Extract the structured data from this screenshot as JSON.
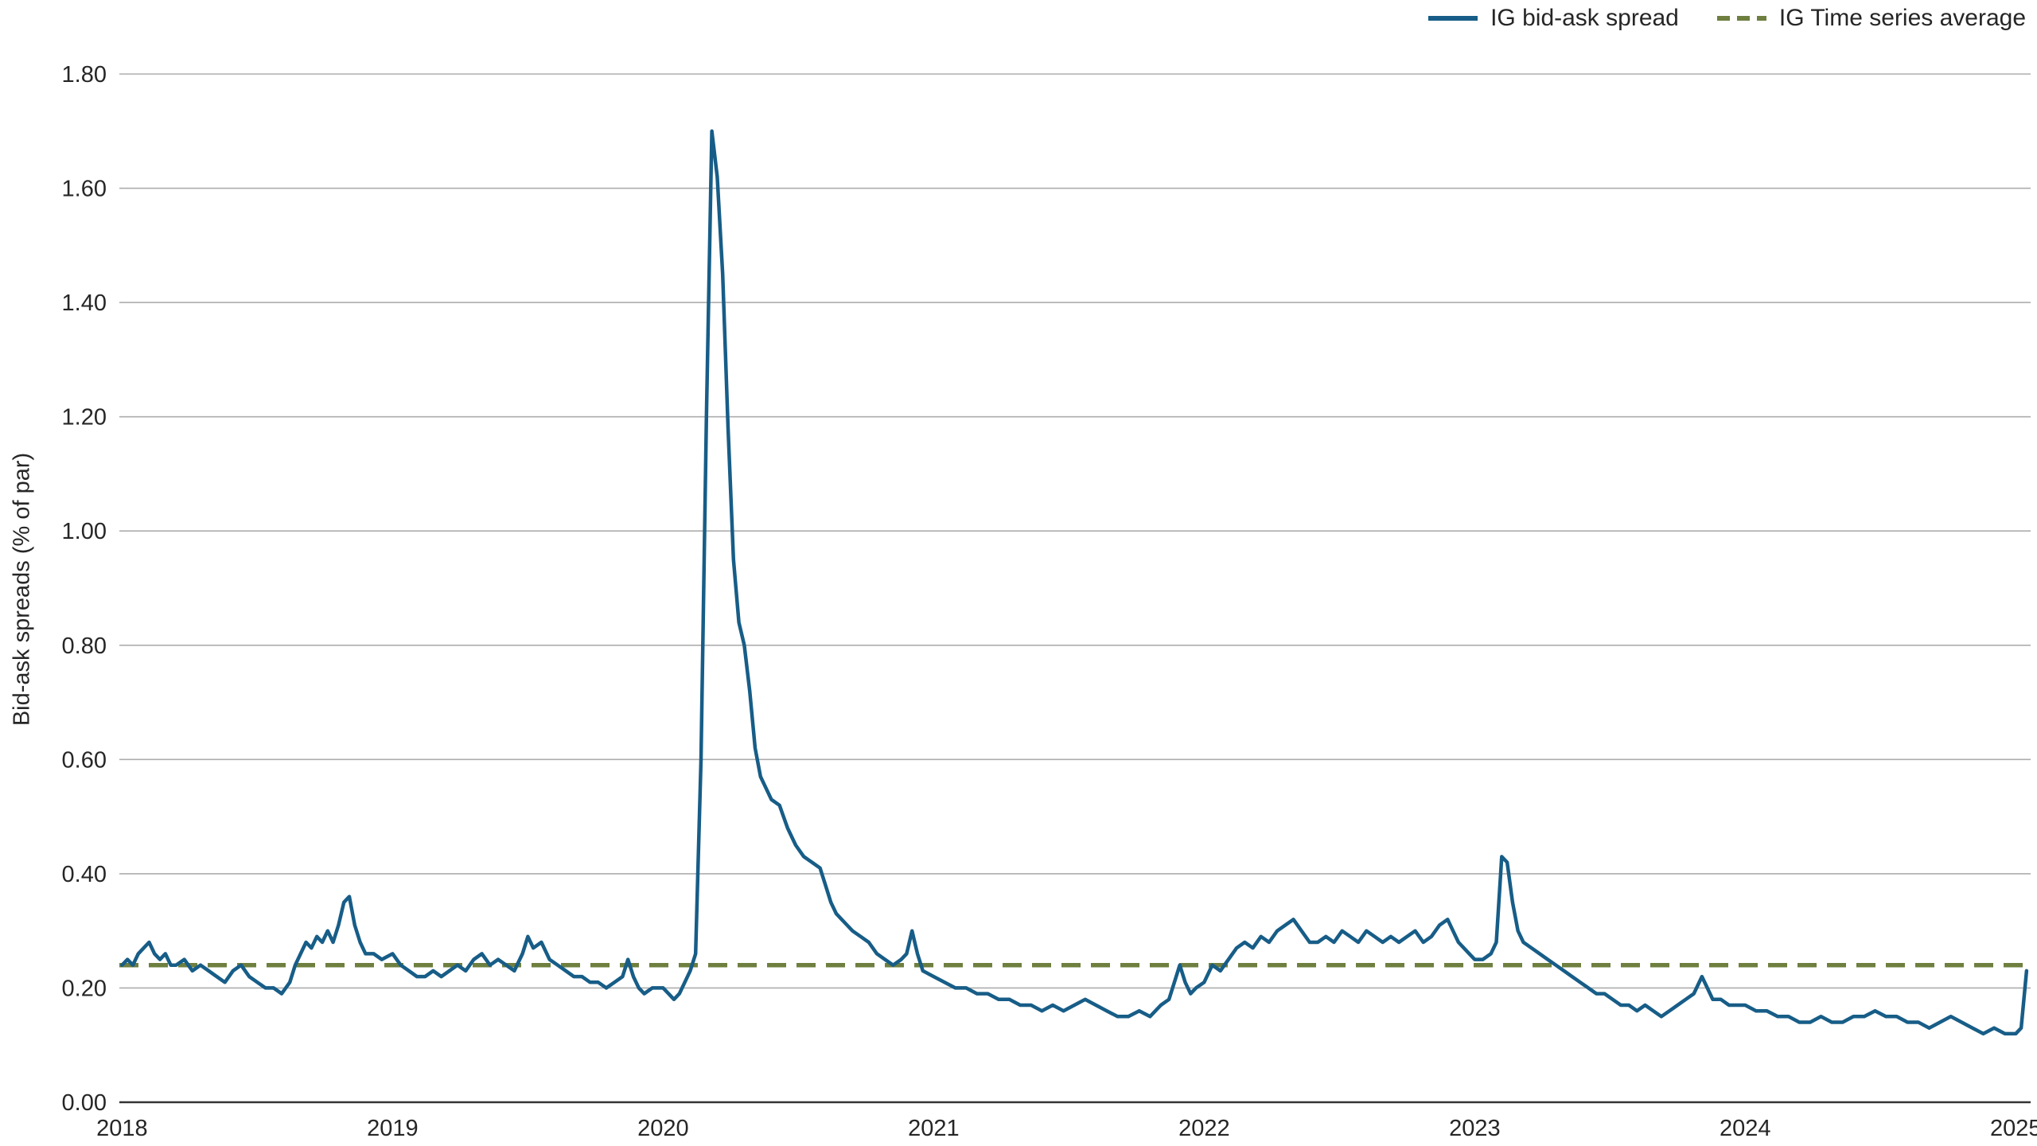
{
  "chart_data": {
    "type": "line",
    "title": "",
    "xlabel": "",
    "ylabel": "Bid-ask spreads (% of par)",
    "xlim": [
      2017.99,
      2025.055
    ],
    "ylim": [
      0.0,
      1.8
    ],
    "yticks": [
      0.0,
      0.2,
      0.4,
      0.6,
      0.8,
      1.0,
      1.2,
      1.4,
      1.6,
      1.8
    ],
    "ytick_format_decimals": 2,
    "xticks": [
      2018,
      2019,
      2020,
      2021,
      2022,
      2023,
      2024,
      2025
    ],
    "grid": "horizontal",
    "legend_position": "top-right",
    "colors": {
      "line": "#175D87",
      "average": "#6E7F3F",
      "gridline": "#ADADAD",
      "axis": "#333333",
      "text": "#262626"
    },
    "series": [
      {
        "name": "IG bid-ask spread",
        "color": "#175D87",
        "style": "solid",
        "points": [
          [
            2018.0,
            0.24
          ],
          [
            2018.02,
            0.25
          ],
          [
            2018.04,
            0.24
          ],
          [
            2018.06,
            0.26
          ],
          [
            2018.08,
            0.27
          ],
          [
            2018.1,
            0.28
          ],
          [
            2018.12,
            0.26
          ],
          [
            2018.14,
            0.25
          ],
          [
            2018.16,
            0.26
          ],
          [
            2018.18,
            0.24
          ],
          [
            2018.2,
            0.24
          ],
          [
            2018.23,
            0.25
          ],
          [
            2018.26,
            0.23
          ],
          [
            2018.29,
            0.24
          ],
          [
            2018.32,
            0.23
          ],
          [
            2018.35,
            0.22
          ],
          [
            2018.38,
            0.21
          ],
          [
            2018.41,
            0.23
          ],
          [
            2018.44,
            0.24
          ],
          [
            2018.47,
            0.22
          ],
          [
            2018.5,
            0.21
          ],
          [
            2018.53,
            0.2
          ],
          [
            2018.56,
            0.2
          ],
          [
            2018.59,
            0.19
          ],
          [
            2018.62,
            0.21
          ],
          [
            2018.64,
            0.24
          ],
          [
            2018.66,
            0.26
          ],
          [
            2018.68,
            0.28
          ],
          [
            2018.7,
            0.27
          ],
          [
            2018.72,
            0.29
          ],
          [
            2018.74,
            0.28
          ],
          [
            2018.76,
            0.3
          ],
          [
            2018.78,
            0.28
          ],
          [
            2018.8,
            0.31
          ],
          [
            2018.82,
            0.35
          ],
          [
            2018.84,
            0.36
          ],
          [
            2018.86,
            0.31
          ],
          [
            2018.88,
            0.28
          ],
          [
            2018.9,
            0.26
          ],
          [
            2018.93,
            0.26
          ],
          [
            2018.96,
            0.25
          ],
          [
            2019.0,
            0.26
          ],
          [
            2019.03,
            0.24
          ],
          [
            2019.06,
            0.23
          ],
          [
            2019.09,
            0.22
          ],
          [
            2019.12,
            0.22
          ],
          [
            2019.15,
            0.23
          ],
          [
            2019.18,
            0.22
          ],
          [
            2019.21,
            0.23
          ],
          [
            2019.24,
            0.24
          ],
          [
            2019.27,
            0.23
          ],
          [
            2019.3,
            0.25
          ],
          [
            2019.33,
            0.26
          ],
          [
            2019.36,
            0.24
          ],
          [
            2019.39,
            0.25
          ],
          [
            2019.42,
            0.24
          ],
          [
            2019.45,
            0.23
          ],
          [
            2019.48,
            0.26
          ],
          [
            2019.5,
            0.29
          ],
          [
            2019.52,
            0.27
          ],
          [
            2019.55,
            0.28
          ],
          [
            2019.58,
            0.25
          ],
          [
            2019.61,
            0.24
          ],
          [
            2019.64,
            0.23
          ],
          [
            2019.67,
            0.22
          ],
          [
            2019.7,
            0.22
          ],
          [
            2019.73,
            0.21
          ],
          [
            2019.76,
            0.21
          ],
          [
            2019.79,
            0.2
          ],
          [
            2019.82,
            0.21
          ],
          [
            2019.85,
            0.22
          ],
          [
            2019.87,
            0.25
          ],
          [
            2019.89,
            0.22
          ],
          [
            2019.91,
            0.2
          ],
          [
            2019.93,
            0.19
          ],
          [
            2019.96,
            0.2
          ],
          [
            2020.0,
            0.2
          ],
          [
            2020.02,
            0.19
          ],
          [
            2020.04,
            0.18
          ],
          [
            2020.06,
            0.19
          ],
          [
            2020.08,
            0.21
          ],
          [
            2020.1,
            0.23
          ],
          [
            2020.12,
            0.26
          ],
          [
            2020.14,
            0.6
          ],
          [
            2020.16,
            1.2
          ],
          [
            2020.18,
            1.7
          ],
          [
            2020.2,
            1.62
          ],
          [
            2020.22,
            1.45
          ],
          [
            2020.24,
            1.18
          ],
          [
            2020.26,
            0.95
          ],
          [
            2020.28,
            0.84
          ],
          [
            2020.3,
            0.8
          ],
          [
            2020.32,
            0.72
          ],
          [
            2020.34,
            0.62
          ],
          [
            2020.36,
            0.57
          ],
          [
            2020.38,
            0.55
          ],
          [
            2020.4,
            0.53
          ],
          [
            2020.43,
            0.52
          ],
          [
            2020.46,
            0.48
          ],
          [
            2020.49,
            0.45
          ],
          [
            2020.52,
            0.43
          ],
          [
            2020.55,
            0.42
          ],
          [
            2020.58,
            0.41
          ],
          [
            2020.6,
            0.38
          ],
          [
            2020.62,
            0.35
          ],
          [
            2020.64,
            0.33
          ],
          [
            2020.66,
            0.32
          ],
          [
            2020.68,
            0.31
          ],
          [
            2020.7,
            0.3
          ],
          [
            2020.73,
            0.29
          ],
          [
            2020.76,
            0.28
          ],
          [
            2020.79,
            0.26
          ],
          [
            2020.82,
            0.25
          ],
          [
            2020.85,
            0.24
          ],
          [
            2020.88,
            0.25
          ],
          [
            2020.9,
            0.26
          ],
          [
            2020.92,
            0.3
          ],
          [
            2020.94,
            0.26
          ],
          [
            2020.96,
            0.23
          ],
          [
            2021.0,
            0.22
          ],
          [
            2021.04,
            0.21
          ],
          [
            2021.08,
            0.2
          ],
          [
            2021.12,
            0.2
          ],
          [
            2021.16,
            0.19
          ],
          [
            2021.2,
            0.19
          ],
          [
            2021.24,
            0.18
          ],
          [
            2021.28,
            0.18
          ],
          [
            2021.32,
            0.17
          ],
          [
            2021.36,
            0.17
          ],
          [
            2021.4,
            0.16
          ],
          [
            2021.44,
            0.17
          ],
          [
            2021.48,
            0.16
          ],
          [
            2021.52,
            0.17
          ],
          [
            2021.56,
            0.18
          ],
          [
            2021.6,
            0.17
          ],
          [
            2021.64,
            0.16
          ],
          [
            2021.68,
            0.15
          ],
          [
            2021.72,
            0.15
          ],
          [
            2021.76,
            0.16
          ],
          [
            2021.8,
            0.15
          ],
          [
            2021.84,
            0.17
          ],
          [
            2021.87,
            0.18
          ],
          [
            2021.89,
            0.21
          ],
          [
            2021.91,
            0.24
          ],
          [
            2021.93,
            0.21
          ],
          [
            2021.95,
            0.19
          ],
          [
            2021.97,
            0.2
          ],
          [
            2022.0,
            0.21
          ],
          [
            2022.03,
            0.24
          ],
          [
            2022.06,
            0.23
          ],
          [
            2022.09,
            0.25
          ],
          [
            2022.12,
            0.27
          ],
          [
            2022.15,
            0.28
          ],
          [
            2022.18,
            0.27
          ],
          [
            2022.21,
            0.29
          ],
          [
            2022.24,
            0.28
          ],
          [
            2022.27,
            0.3
          ],
          [
            2022.3,
            0.31
          ],
          [
            2022.33,
            0.32
          ],
          [
            2022.36,
            0.3
          ],
          [
            2022.39,
            0.28
          ],
          [
            2022.42,
            0.28
          ],
          [
            2022.45,
            0.29
          ],
          [
            2022.48,
            0.28
          ],
          [
            2022.51,
            0.3
          ],
          [
            2022.54,
            0.29
          ],
          [
            2022.57,
            0.28
          ],
          [
            2022.6,
            0.3
          ],
          [
            2022.63,
            0.29
          ],
          [
            2022.66,
            0.28
          ],
          [
            2022.69,
            0.29
          ],
          [
            2022.72,
            0.28
          ],
          [
            2022.75,
            0.29
          ],
          [
            2022.78,
            0.3
          ],
          [
            2022.81,
            0.28
          ],
          [
            2022.84,
            0.29
          ],
          [
            2022.87,
            0.31
          ],
          [
            2022.9,
            0.32
          ],
          [
            2022.92,
            0.3
          ],
          [
            2022.94,
            0.28
          ],
          [
            2022.96,
            0.27
          ],
          [
            2022.98,
            0.26
          ],
          [
            2023.0,
            0.25
          ],
          [
            2023.03,
            0.25
          ],
          [
            2023.06,
            0.26
          ],
          [
            2023.08,
            0.28
          ],
          [
            2023.1,
            0.43
          ],
          [
            2023.12,
            0.42
          ],
          [
            2023.14,
            0.35
          ],
          [
            2023.16,
            0.3
          ],
          [
            2023.18,
            0.28
          ],
          [
            2023.21,
            0.27
          ],
          [
            2023.24,
            0.26
          ],
          [
            2023.27,
            0.25
          ],
          [
            2023.3,
            0.24
          ],
          [
            2023.33,
            0.23
          ],
          [
            2023.36,
            0.22
          ],
          [
            2023.39,
            0.21
          ],
          [
            2023.42,
            0.2
          ],
          [
            2023.45,
            0.19
          ],
          [
            2023.48,
            0.19
          ],
          [
            2023.51,
            0.18
          ],
          [
            2023.54,
            0.17
          ],
          [
            2023.57,
            0.17
          ],
          [
            2023.6,
            0.16
          ],
          [
            2023.63,
            0.17
          ],
          [
            2023.66,
            0.16
          ],
          [
            2023.69,
            0.15
          ],
          [
            2023.72,
            0.16
          ],
          [
            2023.75,
            0.17
          ],
          [
            2023.78,
            0.18
          ],
          [
            2023.81,
            0.19
          ],
          [
            2023.84,
            0.22
          ],
          [
            2023.86,
            0.2
          ],
          [
            2023.88,
            0.18
          ],
          [
            2023.91,
            0.18
          ],
          [
            2023.94,
            0.17
          ],
          [
            2023.97,
            0.17
          ],
          [
            2024.0,
            0.17
          ],
          [
            2024.04,
            0.16
          ],
          [
            2024.08,
            0.16
          ],
          [
            2024.12,
            0.15
          ],
          [
            2024.16,
            0.15
          ],
          [
            2024.2,
            0.14
          ],
          [
            2024.24,
            0.14
          ],
          [
            2024.28,
            0.15
          ],
          [
            2024.32,
            0.14
          ],
          [
            2024.36,
            0.14
          ],
          [
            2024.4,
            0.15
          ],
          [
            2024.44,
            0.15
          ],
          [
            2024.48,
            0.16
          ],
          [
            2024.52,
            0.15
          ],
          [
            2024.56,
            0.15
          ],
          [
            2024.6,
            0.14
          ],
          [
            2024.64,
            0.14
          ],
          [
            2024.68,
            0.13
          ],
          [
            2024.72,
            0.14
          ],
          [
            2024.76,
            0.15
          ],
          [
            2024.8,
            0.14
          ],
          [
            2024.84,
            0.13
          ],
          [
            2024.88,
            0.12
          ],
          [
            2024.92,
            0.13
          ],
          [
            2024.96,
            0.12
          ],
          [
            2025.0,
            0.12
          ],
          [
            2025.02,
            0.13
          ],
          [
            2025.04,
            0.23
          ]
        ]
      },
      {
        "name": "IG Time series average",
        "color": "#6E7F3F",
        "style": "dashed",
        "value": 0.24
      }
    ]
  }
}
